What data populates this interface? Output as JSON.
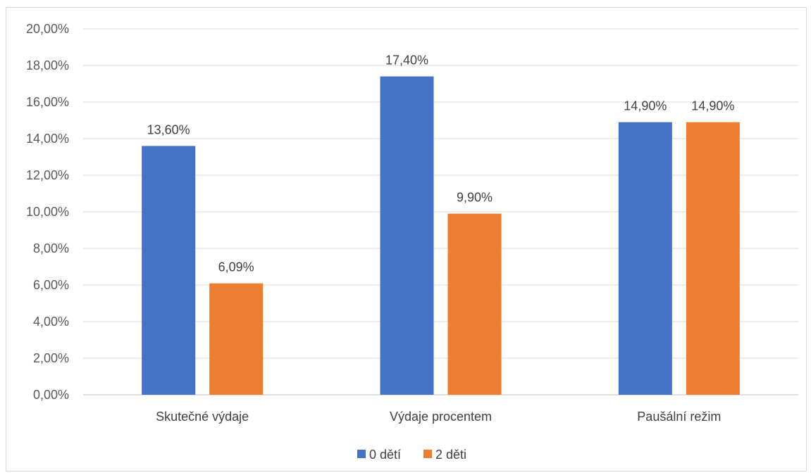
{
  "chart_data": {
    "type": "bar",
    "categories": [
      "Skutečné výdaje",
      "Výdaje procentem",
      "Paušální režim"
    ],
    "series": [
      {
        "name": "0 dětí",
        "color": "#4472C4",
        "values": [
          13.6,
          17.4,
          14.9
        ],
        "labels": [
          "13,60%",
          "17,40%",
          "14,90%"
        ]
      },
      {
        "name": "2 děti",
        "color": "#ED7D31",
        "values": [
          6.09,
          9.9,
          14.9
        ],
        "labels": [
          "6,09%",
          "9,90%",
          "14,90%"
        ]
      }
    ],
    "ylim": [
      0,
      20
    ],
    "yticks": [
      0,
      2,
      4,
      6,
      8,
      10,
      12,
      14,
      16,
      18,
      20
    ],
    "ytick_labels": [
      "0,00%",
      "2,00%",
      "4,00%",
      "6,00%",
      "8,00%",
      "10,00%",
      "12,00%",
      "14,00%",
      "16,00%",
      "18,00%",
      "20,00%"
    ],
    "grid": true,
    "legend_position": "bottom"
  }
}
